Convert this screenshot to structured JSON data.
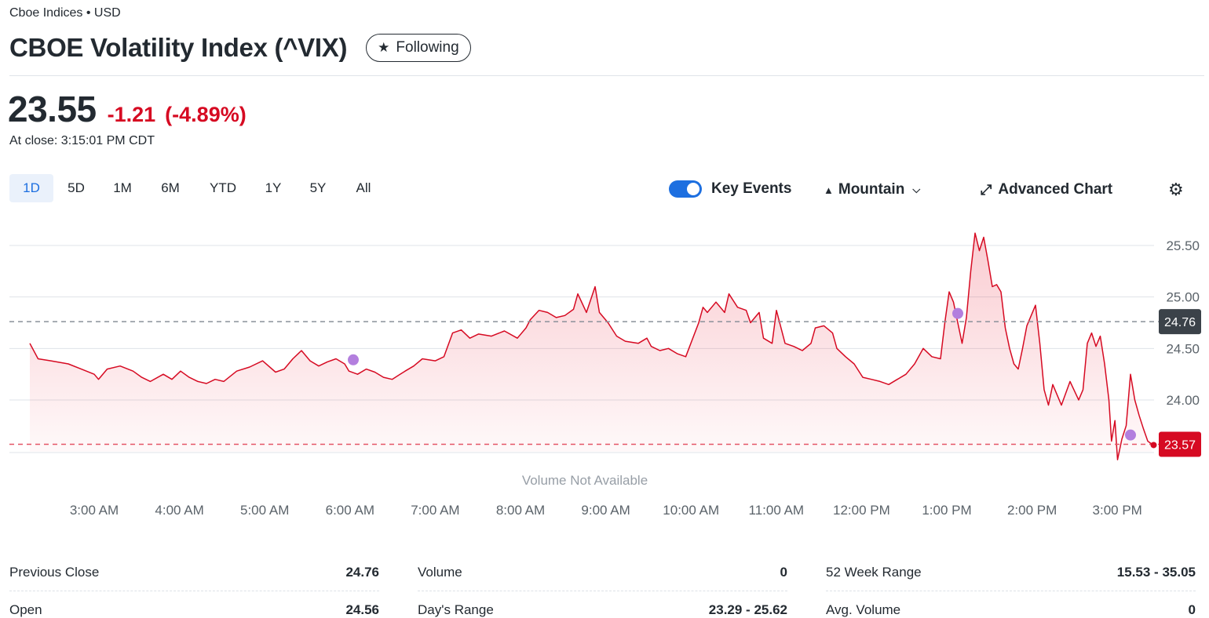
{
  "header": {
    "exchange": "Cboe Indices • USD",
    "title": "CBOE Volatility Index (^VIX)",
    "follow_label": "Following",
    "follow_icon": "star-icon"
  },
  "quote": {
    "price": "23.55",
    "change": "-1.21",
    "change_pct": "(-4.89%)",
    "close_time": "At close: 3:15:01 PM CDT",
    "down_color": "#d60a22"
  },
  "toolbar": {
    "ranges": [
      "1D",
      "5D",
      "1M",
      "6M",
      "YTD",
      "1Y",
      "5Y",
      "All"
    ],
    "active_range": "1D",
    "key_events_label": "Key Events",
    "key_events_on": true,
    "chart_type_label": "Mountain",
    "advanced_label": "Advanced Chart",
    "settings_icon": "gear-icon"
  },
  "chart_data": {
    "type": "area",
    "title": "",
    "xlabel": "",
    "ylabel": "",
    "x_ticks": [
      "3:00 AM",
      "4:00 AM",
      "5:00 AM",
      "6:00 AM",
      "7:00 AM",
      "8:00 AM",
      "9:00 AM",
      "10:00 AM",
      "11:00 AM",
      "12:00 PM",
      "1:00 PM",
      "2:00 PM",
      "3:00 PM"
    ],
    "y_ticks": [
      24.0,
      24.5,
      25.0,
      25.5
    ],
    "ylim": [
      23.5,
      25.6
    ],
    "x_start_hours": 2.25,
    "x_end_hours": 15.25,
    "previous_close": 24.76,
    "previous_close_label": "24.76",
    "last_value": 23.57,
    "last_value_label": "23.57",
    "volume_note": "Volume Not Available",
    "line_color": "#d60a22",
    "key_events": [
      {
        "x": 6.0,
        "y": 24.39
      },
      {
        "x": 13.0,
        "y": 24.84
      },
      {
        "x": 15.0,
        "y": 23.66
      }
    ],
    "series": [
      {
        "points": [
          [
            2.25,
            24.55
          ],
          [
            2.35,
            24.4
          ],
          [
            2.5,
            24.38
          ],
          [
            2.7,
            24.35
          ],
          [
            2.85,
            24.3
          ],
          [
            3.0,
            24.25
          ],
          [
            3.05,
            24.2
          ],
          [
            3.15,
            24.3
          ],
          [
            3.3,
            24.33
          ],
          [
            3.45,
            24.28
          ],
          [
            3.55,
            24.22
          ],
          [
            3.65,
            24.18
          ],
          [
            3.8,
            24.25
          ],
          [
            3.9,
            24.2
          ],
          [
            4.0,
            24.28
          ],
          [
            4.1,
            24.22
          ],
          [
            4.2,
            24.18
          ],
          [
            4.3,
            24.16
          ],
          [
            4.4,
            24.2
          ],
          [
            4.5,
            24.18
          ],
          [
            4.65,
            24.28
          ],
          [
            4.8,
            24.32
          ],
          [
            4.95,
            24.38
          ],
          [
            5.1,
            24.27
          ],
          [
            5.2,
            24.3
          ],
          [
            5.3,
            24.4
          ],
          [
            5.4,
            24.48
          ],
          [
            5.5,
            24.38
          ],
          [
            5.6,
            24.33
          ],
          [
            5.7,
            24.37
          ],
          [
            5.8,
            24.4
          ],
          [
            5.9,
            24.35
          ],
          [
            5.95,
            24.28
          ],
          [
            6.05,
            24.25
          ],
          [
            6.15,
            24.3
          ],
          [
            6.25,
            24.27
          ],
          [
            6.35,
            24.22
          ],
          [
            6.45,
            24.2
          ],
          [
            6.6,
            24.28
          ],
          [
            6.7,
            24.33
          ],
          [
            6.8,
            24.4
          ],
          [
            6.95,
            24.38
          ],
          [
            7.05,
            24.42
          ],
          [
            7.15,
            24.65
          ],
          [
            7.25,
            24.68
          ],
          [
            7.35,
            24.6
          ],
          [
            7.45,
            24.64
          ],
          [
            7.6,
            24.62
          ],
          [
            7.75,
            24.67
          ],
          [
            7.9,
            24.6
          ],
          [
            8.0,
            24.7
          ],
          [
            8.05,
            24.78
          ],
          [
            8.15,
            24.87
          ],
          [
            8.25,
            24.85
          ],
          [
            8.35,
            24.8
          ],
          [
            8.45,
            24.82
          ],
          [
            8.55,
            24.88
          ],
          [
            8.6,
            25.03
          ],
          [
            8.7,
            24.85
          ],
          [
            8.8,
            25.1
          ],
          [
            8.85,
            24.85
          ],
          [
            8.95,
            24.75
          ],
          [
            9.05,
            24.62
          ],
          [
            9.15,
            24.57
          ],
          [
            9.3,
            24.55
          ],
          [
            9.4,
            24.6
          ],
          [
            9.45,
            24.52
          ],
          [
            9.55,
            24.48
          ],
          [
            9.65,
            24.5
          ],
          [
            9.75,
            24.45
          ],
          [
            9.85,
            24.42
          ],
          [
            10.0,
            24.75
          ],
          [
            10.05,
            24.9
          ],
          [
            10.1,
            24.85
          ],
          [
            10.2,
            24.95
          ],
          [
            10.3,
            24.85
          ],
          [
            10.35,
            25.03
          ],
          [
            10.45,
            24.9
          ],
          [
            10.55,
            24.87
          ],
          [
            10.6,
            24.75
          ],
          [
            10.7,
            24.85
          ],
          [
            10.75,
            24.6
          ],
          [
            10.85,
            24.55
          ],
          [
            10.9,
            24.87
          ],
          [
            11.0,
            24.55
          ],
          [
            11.1,
            24.52
          ],
          [
            11.2,
            24.48
          ],
          [
            11.3,
            24.55
          ],
          [
            11.35,
            24.7
          ],
          [
            11.45,
            24.72
          ],
          [
            11.55,
            24.65
          ],
          [
            11.6,
            24.5
          ],
          [
            11.7,
            24.42
          ],
          [
            11.8,
            24.35
          ],
          [
            11.9,
            24.22
          ],
          [
            12.0,
            24.2
          ],
          [
            12.1,
            24.18
          ],
          [
            12.2,
            24.15
          ],
          [
            12.3,
            24.2
          ],
          [
            12.4,
            24.25
          ],
          [
            12.5,
            24.35
          ],
          [
            12.6,
            24.5
          ],
          [
            12.7,
            24.42
          ],
          [
            12.8,
            24.4
          ],
          [
            12.85,
            24.75
          ],
          [
            12.9,
            25.05
          ],
          [
            12.95,
            24.95
          ],
          [
            13.05,
            24.55
          ],
          [
            13.1,
            24.8
          ],
          [
            13.15,
            25.25
          ],
          [
            13.2,
            25.62
          ],
          [
            13.25,
            25.45
          ],
          [
            13.3,
            25.58
          ],
          [
            13.35,
            25.35
          ],
          [
            13.4,
            25.1
          ],
          [
            13.45,
            25.12
          ],
          [
            13.5,
            25.05
          ],
          [
            13.55,
            24.7
          ],
          [
            13.6,
            24.5
          ],
          [
            13.65,
            24.35
          ],
          [
            13.7,
            24.3
          ],
          [
            13.75,
            24.5
          ],
          [
            13.8,
            24.72
          ],
          [
            13.9,
            24.92
          ],
          [
            13.95,
            24.55
          ],
          [
            14.0,
            24.1
          ],
          [
            14.05,
            23.95
          ],
          [
            14.1,
            24.15
          ],
          [
            14.15,
            24.05
          ],
          [
            14.2,
            23.95
          ],
          [
            14.3,
            24.18
          ],
          [
            14.4,
            24.0
          ],
          [
            14.45,
            24.1
          ],
          [
            14.5,
            24.55
          ],
          [
            14.55,
            24.65
          ],
          [
            14.6,
            24.52
          ],
          [
            14.65,
            24.62
          ],
          [
            14.7,
            24.35
          ],
          [
            14.75,
            24.0
          ],
          [
            14.78,
            23.6
          ],
          [
            14.82,
            23.8
          ],
          [
            14.85,
            23.42
          ],
          [
            14.9,
            23.62
          ],
          [
            14.95,
            23.75
          ],
          [
            15.0,
            24.25
          ],
          [
            15.05,
            24.0
          ],
          [
            15.1,
            23.85
          ],
          [
            15.15,
            23.72
          ],
          [
            15.2,
            23.6
          ],
          [
            15.25,
            23.57
          ]
        ]
      }
    ]
  },
  "stats": [
    [
      {
        "label": "Previous Close",
        "value": "24.76"
      },
      {
        "label": "Open",
        "value": "24.56"
      }
    ],
    [
      {
        "label": "Volume",
        "value": "0"
      },
      {
        "label": "Day's Range",
        "value": "23.29 - 25.62"
      }
    ],
    [
      {
        "label": "52 Week Range",
        "value": "15.53 - 35.05"
      },
      {
        "label": "Avg. Volume",
        "value": "0"
      }
    ]
  ]
}
